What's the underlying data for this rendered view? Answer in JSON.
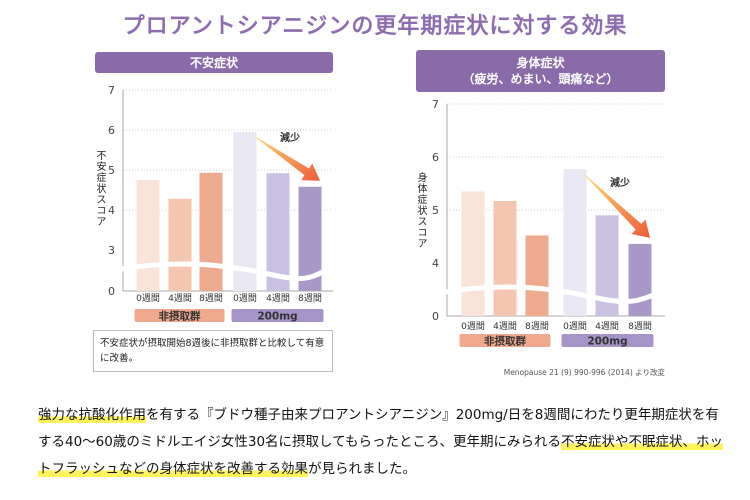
{
  "title": "プロアントシアニジンの更年期症状に対する効果",
  "chart_data": [
    {
      "type": "bar",
      "title": "不安症状",
      "ylabel": "不安症状スコア",
      "yticks": [
        0,
        3,
        4,
        5,
        6,
        7
      ],
      "axis_break": [
        0,
        3
      ],
      "ylim": [
        0,
        7
      ],
      "categories": [
        "0週間",
        "4週間",
        "8週間",
        "0週間",
        "4週間",
        "8週間"
      ],
      "groups": [
        {
          "label": "非摂取群",
          "color": "#f0a98c"
        },
        {
          "label": "200mg",
          "color": "#a594c8"
        }
      ],
      "values": [
        4.75,
        4.28,
        4.93,
        5.95,
        4.92,
        4.58
      ],
      "colors": [
        "#f9e2d8",
        "#f4c6b0",
        "#eeaa8e",
        "#e9e7f3",
        "#cac1e2",
        "#a898c8"
      ],
      "annotation": "減少",
      "grid": true
    },
    {
      "type": "bar",
      "title": "身体症状",
      "subtitle": "（疲労、めまい、頭痛など）",
      "ylabel": "身体症状スコア",
      "yticks": [
        0,
        4,
        5,
        6,
        7
      ],
      "axis_break": [
        0,
        4
      ],
      "ylim": [
        0,
        7
      ],
      "categories": [
        "0週間",
        "4週間",
        "8週間",
        "0週間",
        "4週間",
        "8週間"
      ],
      "groups": [
        {
          "label": "非摂取群",
          "color": "#f0a98c"
        },
        {
          "label": "200mg",
          "color": "#a594c8"
        }
      ],
      "values": [
        5.35,
        5.17,
        4.52,
        5.77,
        4.9,
        4.36
      ],
      "colors": [
        "#f9e2d8",
        "#f4c6b0",
        "#eeaa8e",
        "#e9e7f3",
        "#cac1e2",
        "#a898c8"
      ],
      "annotation": "減少",
      "grid": true
    }
  ],
  "note": "不安症状が摂取開始8週後に非摂取群と比較して有意に改善。",
  "citation": "Menopause 21 (9) 990-996 (2014) より改変",
  "body": {
    "p1": "強力な抗酸化作用",
    "p2": "を有する『ブドウ種子由来プロアントシアニジン』200mg/日を8週間にわたり更年期症状を有する40～60歳のミドルエイジ女性30名に摂取してもらったところ、更年期にみられる",
    "p3": "不安症状や不眠症状、ホットフラッシュなどの身体症状を改善する効果",
    "p4": "が見られました。"
  }
}
